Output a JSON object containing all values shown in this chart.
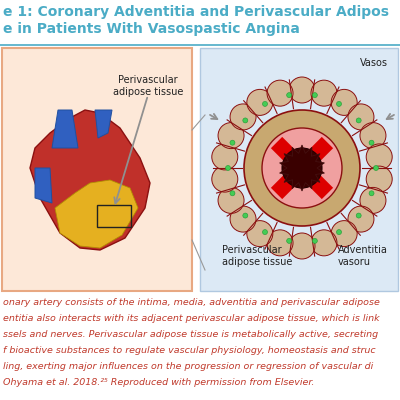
{
  "title_line1": "e 1: Coronary Adventitia and Perivascular Adipos",
  "title_line2": "e in Patients With Vasospastic Angina",
  "title_color": "#4bacc6",
  "title_fontsize": 10.0,
  "bg_color": "#ffffff",
  "separator_color": "#4bacc6",
  "body_text_lines": [
    "onary artery consists of the intima, media, adventitia and perivascular adipose",
    "entitia also interacts with its adjacent perivascular adipose tissue, which is link",
    "ssels and nerves. Perivascular adipose tissue is metabolically active, secreting",
    "f bioactive substances to regulate vascular physiology, homeostasis and struc",
    "ling, exerting major influences on the progression or regression of vascular di",
    "Ohyama et al. 2018.²⁵ Reproduced with permission from Elsevier."
  ],
  "body_fontsize": 6.8,
  "body_color": "#c0392b",
  "label_perivascular_heart": "Perivascular\nadipose tissue",
  "label_perivascular_cross": "Perivascular\nadipose tissue",
  "label_adventitia": "Adventitia\nvasoru",
  "label_vasos": "Vasos",
  "left_panel_bg": "#fde8d8",
  "left_panel_edge": "#e8a882",
  "right_panel_bg": "#dce9f5",
  "right_panel_edge": "#b0c8e0",
  "arrow_color": "#909090",
  "cross_red": "#dd0000",
  "lumen_dark": "#3a0000",
  "media_pink": "#f0a0a0",
  "adventitia_tan": "#c8a870",
  "adipose_tan": "#d4b896",
  "adipose_tan2": "#c8a870",
  "green_dots": "#44cc55",
  "vessel_dark_red": "#8b1010",
  "heart_red": "#c0302a",
  "heart_dark_red": "#8b1010",
  "heart_yellow": "#e8b820",
  "blue_vessel": "#3060c0",
  "blue_vessel2": "#2050a0",
  "label_fontsize": 7.0,
  "label_color": "#222222"
}
